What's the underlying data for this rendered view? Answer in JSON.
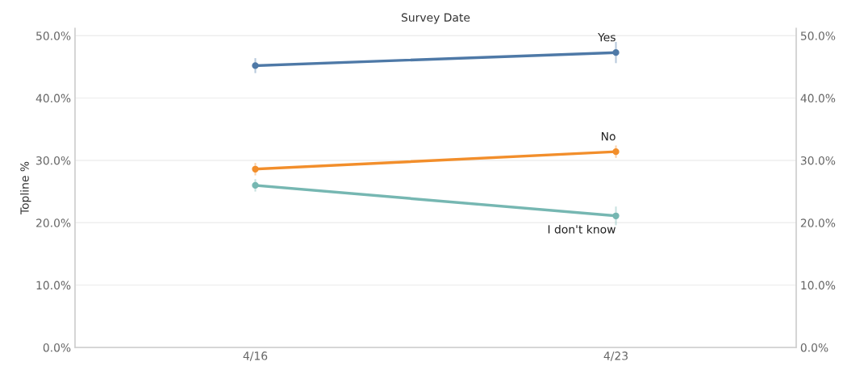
{
  "chart_data": {
    "type": "line",
    "xlabel": "Survey Date",
    "ylabel": "Topline %",
    "categories": [
      "4/16",
      "4/23"
    ],
    "series": [
      {
        "name": "Yes",
        "color": "#4e79a7",
        "values": [
          45.2,
          47.3
        ],
        "errors": [
          1.2,
          1.7
        ]
      },
      {
        "name": "No",
        "color": "#f28e2b",
        "values": [
          28.6,
          31.4
        ],
        "errors": [
          1.0,
          1.0
        ]
      },
      {
        "name": "I don't know",
        "color": "#76b7b2",
        "values": [
          26.0,
          21.1
        ],
        "errors": [
          1.0,
          1.5
        ]
      }
    ],
    "ylim": [
      0,
      51.2
    ],
    "yticks": [
      {
        "value": 0,
        "label": "0.0%"
      },
      {
        "value": 10,
        "label": "10.0%"
      },
      {
        "value": 20,
        "label": "20.0%"
      },
      {
        "value": 30,
        "label": "30.0%"
      },
      {
        "value": 40,
        "label": "40.0%"
      },
      {
        "value": 50,
        "label": "50.0%"
      }
    ],
    "y2lim": [
      0,
      51.2
    ],
    "y2ticks": [
      {
        "value": 0,
        "label": "0.0%"
      },
      {
        "value": 10,
        "label": "10.0%"
      },
      {
        "value": 20,
        "label": "20.0%"
      },
      {
        "value": 30,
        "label": "30.0%"
      },
      {
        "value": 40,
        "label": "40.0%"
      },
      {
        "value": 50,
        "label": "50.0%"
      }
    ],
    "grid": "y",
    "legend": false,
    "marker": "circle",
    "line_style": "solid"
  }
}
